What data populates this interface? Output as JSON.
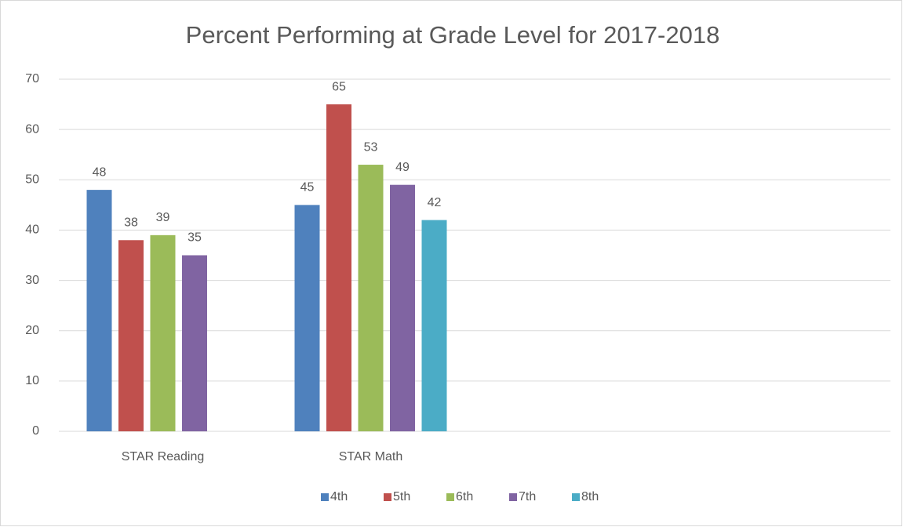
{
  "chart_data": {
    "type": "bar",
    "title": "Percent Performing at Grade Level for 2017-2018",
    "categories": [
      "STAR Reading",
      "STAR Math",
      null,
      null
    ],
    "series": [
      {
        "name": "4th",
        "color": "#4f81bd",
        "values": [
          48,
          45,
          null,
          null
        ]
      },
      {
        "name": "5th",
        "color": "#c0504d",
        "values": [
          38,
          65,
          null,
          null
        ]
      },
      {
        "name": "6th",
        "color": "#9bbb59",
        "values": [
          39,
          53,
          null,
          null
        ]
      },
      {
        "name": "7th",
        "color": "#8064a2",
        "values": [
          35,
          49,
          null,
          null
        ]
      },
      {
        "name": "8th",
        "color": "#4bacc6",
        "values": [
          null,
          42,
          null,
          null
        ]
      }
    ],
    "ylim": [
      0,
      70
    ],
    "yticks": [
      0,
      10,
      20,
      30,
      40,
      50,
      60,
      70
    ],
    "grid": true,
    "legend": "bottom"
  }
}
